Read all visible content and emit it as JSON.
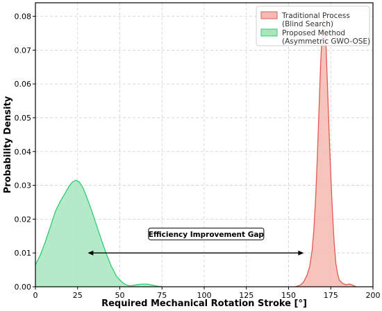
{
  "chart_data": {
    "type": "area",
    "title": "",
    "xlabel": "Required Mechanical Rotation Stroke [°]",
    "ylabel": "Probability Density",
    "xlim": [
      0,
      200
    ],
    "ylim": [
      0,
      0.084
    ],
    "xticks": [
      0,
      25,
      50,
      75,
      100,
      125,
      150,
      175,
      200
    ],
    "yticks": [
      0.0,
      0.01,
      0.02,
      0.03,
      0.04,
      0.05,
      0.06,
      0.07,
      0.08
    ],
    "ytick_labels": [
      "0.00",
      "0.01",
      "0.02",
      "0.03",
      "0.04",
      "0.05",
      "0.06",
      "0.07",
      "0.08"
    ],
    "grid": true,
    "legend_position": "top-right",
    "series": [
      {
        "name": "Traditional Process\n(Blind Search)",
        "legend_lines": [
          "Traditional Process",
          "(Blind Search)"
        ],
        "fill": "#f4b9b2",
        "stroke": "#e05a4f",
        "x": [
          154,
          157,
          159,
          161,
          162.5,
          164,
          165,
          166,
          167,
          168,
          169,
          170,
          171,
          172,
          173,
          174,
          175,
          176,
          177,
          178,
          179,
          180,
          182,
          184,
          186,
          188,
          190
        ],
        "y": [
          0,
          0.0005,
          0.0015,
          0.0035,
          0.006,
          0.011,
          0.017,
          0.026,
          0.038,
          0.052,
          0.066,
          0.076,
          0.08,
          0.074,
          0.06,
          0.046,
          0.033,
          0.022,
          0.013,
          0.007,
          0.004,
          0.002,
          0.001,
          0.0006,
          0.0008,
          0.0005,
          0
        ]
      },
      {
        "name": "Proposed Method\n(Asymmetric GWO-OSE)",
        "legend_lines": [
          "Proposed Method",
          "(Asymmetric GWO-OSE)"
        ],
        "fill": "#a8e6be",
        "stroke": "#2ecc71",
        "x": [
          0,
          3,
          6,
          9,
          12,
          15,
          18,
          20,
          22,
          24,
          26,
          28,
          30,
          33,
          36,
          39,
          42,
          45,
          48,
          50,
          52,
          54,
          56,
          58,
          60,
          63,
          66,
          69,
          72,
          75
        ],
        "y": [
          0.0065,
          0.0095,
          0.0135,
          0.018,
          0.0225,
          0.0255,
          0.028,
          0.0298,
          0.031,
          0.0315,
          0.031,
          0.0295,
          0.027,
          0.023,
          0.0185,
          0.014,
          0.0098,
          0.006,
          0.0032,
          0.002,
          0.0011,
          0.0005,
          0.0003,
          0.0004,
          0.0006,
          0.0008,
          0.0008,
          0.0005,
          0.0002,
          0
        ]
      }
    ],
    "annotation": {
      "text": "Efficiency Improvement Gap",
      "arrow_x": [
        31,
        159
      ],
      "arrow_y": 0.01
    }
  }
}
